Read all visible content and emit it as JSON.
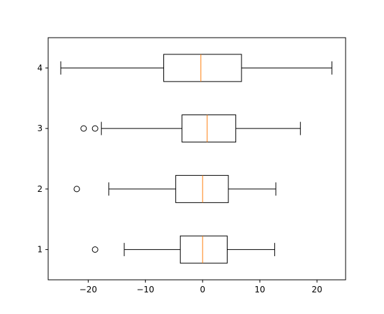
{
  "chart_data": {
    "type": "boxplot",
    "orientation": "horizontal",
    "title": "",
    "xlabel": "",
    "ylabel": "",
    "xlim": [
      -27,
      25
    ],
    "ylim": [
      0.5,
      4.5
    ],
    "xticks": [
      -20,
      -10,
      0,
      10,
      20
    ],
    "xtick_labels": [
      "−20",
      "−10",
      "0",
      "10",
      "20"
    ],
    "categories": [
      "1",
      "2",
      "3",
      "4"
    ],
    "boxes": [
      {
        "label": "1",
        "whisker_low": -13.7,
        "q1": -3.9,
        "median": 0.0,
        "q3": 4.3,
        "whisker_high": 12.6,
        "outliers": [
          -18.8
        ]
      },
      {
        "label": "2",
        "whisker_low": -16.4,
        "q1": -4.7,
        "median": 0.0,
        "q3": 4.5,
        "whisker_high": 12.8,
        "outliers": [
          -22.0
        ]
      },
      {
        "label": "3",
        "whisker_low": -17.7,
        "q1": -3.6,
        "median": 0.8,
        "q3": 5.8,
        "whisker_high": 17.1,
        "outliers": [
          -20.8,
          -18.8
        ]
      },
      {
        "label": "4",
        "whisker_low": -24.8,
        "q1": -6.8,
        "median": -0.3,
        "q3": 6.8,
        "whisker_high": 22.6,
        "outliers": []
      }
    ],
    "colors": {
      "box": "#000000",
      "median": "#ff7f0e"
    },
    "grid": false,
    "legend": "none"
  }
}
